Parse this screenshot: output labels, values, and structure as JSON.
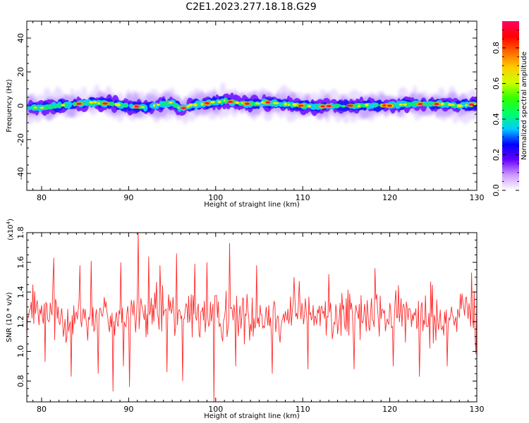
{
  "title": "C2E1.2023.277.18.18.G29",
  "chart_data": [
    {
      "type": "heatmap",
      "xlabel": "Height of straight line (km)",
      "ylabel": "Frequency (Hz)",
      "xlim": [
        78.3,
        130
      ],
      "ylim": [
        -50,
        50
      ],
      "xticks": [
        80,
        90,
        100,
        110,
        120,
        130
      ],
      "yticks": [
        -40,
        -20,
        0,
        20,
        40
      ],
      "colorbar": {
        "label": "Normalized spectral amplitude",
        "range": [
          0,
          0.95
        ],
        "ticks": [
          "0.0",
          "0.2",
          "0.4",
          "0.6",
          "0.8"
        ],
        "colors": [
          "#ffffff",
          "#cc99ff",
          "#6600ff",
          "#0000ff",
          "#00ccff",
          "#00ff66",
          "#33ff00",
          "#ccff00",
          "#ffcc00",
          "#ff6600",
          "#ff0000",
          "#ff0066"
        ]
      },
      "ridge": {
        "x": [
          78.3,
          80,
          82,
          84,
          86,
          88,
          90,
          92,
          94,
          95,
          96,
          97,
          98,
          100,
          101,
          102,
          104,
          106,
          108,
          110,
          112,
          114,
          116,
          118,
          120,
          122,
          124,
          126,
          128,
          130
        ],
        "freq": [
          -1,
          -1,
          0,
          1,
          2,
          1,
          0,
          -1,
          1,
          2,
          -2,
          0,
          1,
          2,
          3,
          2,
          1,
          2,
          1,
          0,
          -0.5,
          0,
          0,
          0.5,
          0,
          1,
          1,
          1,
          0,
          1
        ],
        "peaks_x": [
          84.3,
          87.3,
          90.9,
          96.3,
          99.0,
          101.7,
          103.6,
          106.0,
          109.8,
          112.3,
          113.0,
          115.5,
          119.4,
          120.0,
          123.5,
          125.4,
          129.4
        ]
      }
    },
    {
      "type": "line",
      "xlabel": "Height of straight line (km)",
      "ylabel": "SNR (10 * v/v)",
      "multiplier_label": "(x10",
      "multiplier_exp": "4",
      "multiplier_close": ")",
      "xlim": [
        78.3,
        130
      ],
      "ylim": [
        0.66,
        1.8
      ],
      "xticks": [
        80,
        90,
        100,
        110,
        120,
        130
      ],
      "yticks": [
        "0.8",
        "1.0",
        "1.2",
        "1.4",
        "1.6",
        "1.8"
      ],
      "color": "#ff2a2a",
      "x_start": 78.3,
      "x_step": 0.1,
      "baseline": 1.24,
      "spikes": [
        [
          79.0,
          1.45
        ],
        [
          80.4,
          0.93
        ],
        [
          81.4,
          1.63
        ],
        [
          83.4,
          0.83
        ],
        [
          84.4,
          1.58
        ],
        [
          85.7,
          1.61
        ],
        [
          86.5,
          0.85
        ],
        [
          88.2,
          0.73
        ],
        [
          89.1,
          1.6
        ],
        [
          89.4,
          0.9
        ],
        [
          90.1,
          0.76
        ],
        [
          91.1,
          1.81
        ],
        [
          92.3,
          1.64
        ],
        [
          93.6,
          1.58
        ],
        [
          94.4,
          0.86
        ],
        [
          95.5,
          1.66
        ],
        [
          96.2,
          0.8
        ],
        [
          97.6,
          1.59
        ],
        [
          99.0,
          1.6
        ],
        [
          99.8,
          0.66
        ],
        [
          101.6,
          1.73
        ],
        [
          102.3,
          0.9
        ],
        [
          104.7,
          1.58
        ],
        [
          106.5,
          0.85
        ],
        [
          109.0,
          1.5
        ],
        [
          110.6,
          0.88
        ],
        [
          113.0,
          1.52
        ],
        [
          115.9,
          0.88
        ],
        [
          118.3,
          1.56
        ],
        [
          120.4,
          0.9
        ],
        [
          123.4,
          0.83
        ],
        [
          124.7,
          1.47
        ],
        [
          126.6,
          0.9
        ],
        [
          129.4,
          1.53
        ],
        [
          129.9,
          0.98
        ]
      ]
    }
  ]
}
